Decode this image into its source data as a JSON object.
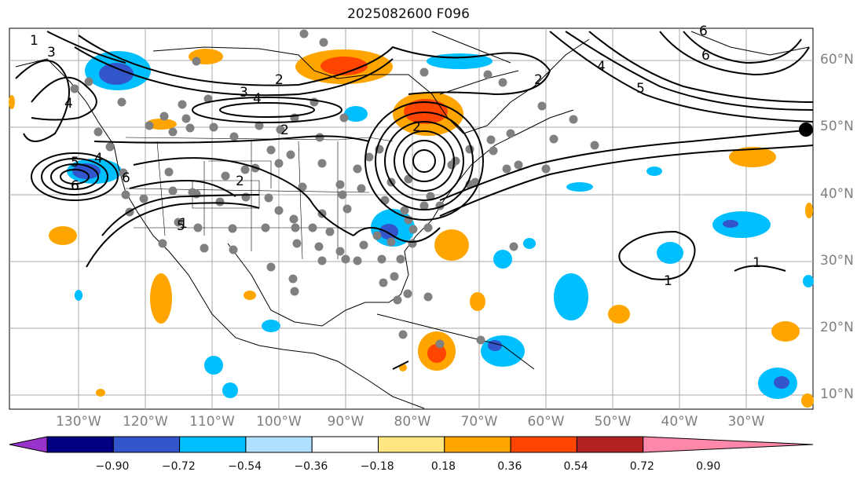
{
  "title": "2025082600 F096",
  "lon_labels": [
    "130°W",
    "120°W",
    "110°W",
    "100°W",
    "90°W",
    "80°W",
    "70°W",
    "60°W",
    "50°W",
    "40°W",
    "30°W"
  ],
  "lat_labels": [
    "60°N",
    "50°N",
    "40°N",
    "30°N",
    "20°N",
    "10°N"
  ],
  "colorbar": {
    "ticks": [
      "−0.90",
      "−0.72",
      "−0.54",
      "−0.36",
      "−0.18",
      "0.18",
      "0.36",
      "0.54",
      "0.72",
      "0.90"
    ],
    "colors": [
      "#9933cc",
      "#000080",
      "#3355cc",
      "#00bfff",
      "#b0e0ff",
      "#ffffff",
      "#ffe680",
      "#ffa500",
      "#ff4500",
      "#b22222",
      "#ff88aa"
    ]
  },
  "contour_labels": [
    "1",
    "3",
    "4",
    "2",
    "3",
    "4",
    "2",
    "2",
    "5",
    "4",
    "6",
    "6",
    "5",
    "2",
    "1",
    "1",
    "1",
    "2",
    "5",
    "6",
    "4",
    "6"
  ]
}
